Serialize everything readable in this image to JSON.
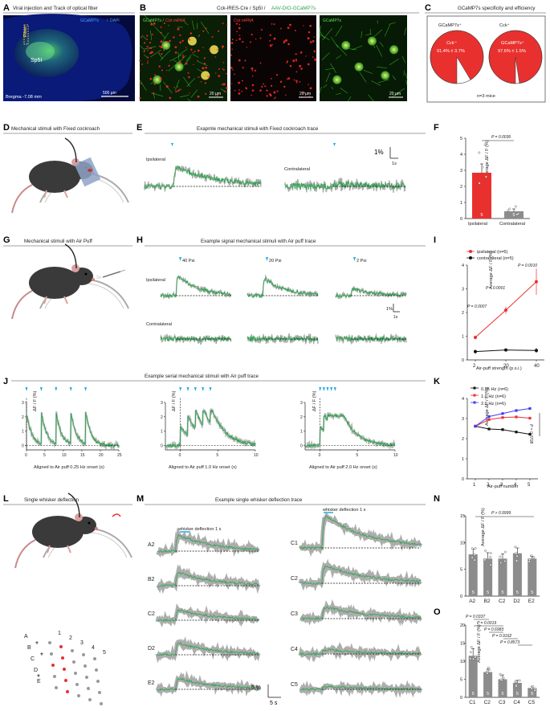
{
  "panel_letters": [
    "A",
    "B",
    "C",
    "D",
    "E",
    "F",
    "G",
    "H",
    "I",
    "J",
    "K",
    "L",
    "M",
    "N",
    "O"
  ],
  "colors": {
    "trace_green": "#2ea44f",
    "trace_gray": "#8a8a8a",
    "arrow_blue": "#29a8e0",
    "red": "#e8312f",
    "bar_red": "#e8312f",
    "bar_gray": "#8c8c8c",
    "blue_series": "#3d3df0"
  },
  "A": {
    "title": "Viral injection and Track of optical fiber",
    "stain": "GCaMP7s / DAPI",
    "label_gcamp": "GCaMP7s",
    "label_dapi": "DAPI",
    "fiber": "Fiber",
    "region": "Sp5I",
    "bregma": "Bregma -7.08 mm",
    "scale": "500 µm"
  },
  "B": {
    "title_a": "Cck-IRES-Cre / Sp5I / ",
    "title_b": "AAV-DIO-GCaMP7s",
    "img1_green": "GCaMP7s / ",
    "img1_red": "Cck mRNA",
    "img2": "Cck mRNA",
    "img3": "GCaMP7s",
    "scale": "20 µm"
  },
  "C": {
    "title": "GCaMP7s specificity and efficiency",
    "pie1_label": "GCaMP7s⁺",
    "pie1_inner": "Cck⁺",
    "pie1_value": "91.4% ± 3.7%",
    "pie2_label": "Cck⁺",
    "pie2_inner": "GCaMP7s⁺",
    "pie2_value": "97.6% ± 1.5%",
    "n": "n=3 mice",
    "pie1_frac": 0.914,
    "pie2_frac": 0.976
  },
  "D": {
    "title": "Mechanical stimuli with Fixed cockroach"
  },
  "E": {
    "title": "Exapmle mechanical stimuli with Fixed cockroach trace",
    "ipsi": "Ipsilateral",
    "contra": "Contralateral",
    "scale_y": "1%",
    "scale_x": "1s"
  },
  "F": {
    "ylabel": "Average ΔF / F (%)",
    "p": "P = 0.0036",
    "n_label": "5",
    "chart_data": {
      "type": "bar",
      "categories": [
        "Ipsilateral",
        "Contralateral"
      ],
      "values": [
        2.85,
        0.45
      ],
      "errors": [
        0.55,
        0.15
      ],
      "ylim": [
        0,
        5
      ],
      "yticks": [
        "0",
        "1",
        "2",
        "3",
        "4",
        "5"
      ],
      "points": [
        [
          2.2,
          2.6,
          3.2,
          4.6,
          4.1
        ],
        [
          0.3,
          0.5,
          0.6,
          0.75,
          0.25
        ]
      ]
    }
  },
  "G": {
    "title": "Mechanical stimuli with Air Puff"
  },
  "H": {
    "title": "Example signal mechanical stimuli with Air puff trace",
    "psi40": "40 Psi",
    "psi20": "20 Psi",
    "psi2": "2 Psi",
    "ipsi": "Ipsilateral",
    "contra": "Contralateral",
    "scale_y": "1%",
    "scale_x": "1s"
  },
  "I": {
    "ylabel": "Average ΔF / F (%)",
    "xlabel": "Air-puff strength (p.s.i.)",
    "legend_ipsi": "ipsilateral (n=6)",
    "legend_contra": "contralateral (n=5)",
    "p1": "P = 0.0007",
    "p2": "P < 0.0001",
    "p3": "P = 0.0010",
    "chart_data": {
      "type": "line",
      "categories": [
        "2",
        "20",
        "40"
      ],
      "series": [
        {
          "name": "ipsilateral (n=6)",
          "values": [
            0.95,
            2.1,
            3.3
          ],
          "errors": [
            0.08,
            0.15,
            0.55
          ]
        },
        {
          "name": "contralateral (n=5)",
          "values": [
            0.35,
            0.42,
            0.4
          ],
          "errors": [
            0.08,
            0.06,
            0.1
          ]
        }
      ],
      "ylim": [
        0,
        4
      ],
      "yticks": [
        "0",
        "1",
        "2",
        "3",
        "4"
      ]
    }
  },
  "J": {
    "title": "Example serial mechanical stimuli with Air puff trace",
    "ylabel": "ΔF / F (%)",
    "x1": "Aligned to Air puff 0.25 Hz onset (s)",
    "x2": "Aligned to Air puff 1.0 Hz onset (s)",
    "x3": "Aligned to Air puff 2.0 Hz onset (s)",
    "xt1": [
      "0",
      "5",
      "10",
      "15",
      "20",
      "25"
    ],
    "xt2": [
      "0",
      "5",
      "10"
    ],
    "xt3": [
      "0",
      "5",
      "10"
    ],
    "yt": [
      "0",
      "1",
      "2",
      "3"
    ]
  },
  "K": {
    "ylabel": "Average ΔF / F (%)",
    "xlabel": "Air-puff number",
    "p": "P = 0.0708",
    "chart_data": {
      "type": "line",
      "categories": [
        "1",
        "2",
        "3",
        "4",
        "5"
      ],
      "series": [
        {
          "name": "0.25 Hz (n=6)",
          "values": [
            2.62,
            2.48,
            2.45,
            2.33,
            2.22
          ]
        },
        {
          "name": "1.0 Hz (n=6)",
          "values": [
            2.62,
            2.95,
            3.05,
            3.08,
            3.02
          ]
        },
        {
          "name": "2.0 Hz (n=6)",
          "values": [
            2.62,
            3.1,
            3.25,
            3.4,
            3.5
          ]
        }
      ],
      "ylim": [
        0,
        4
      ],
      "yticks": [
        "0",
        "1",
        "2",
        "3",
        "4"
      ]
    }
  },
  "L": {
    "title": "Single whisker deflection",
    "rows": [
      "A",
      "B",
      "C",
      "D",
      "E"
    ],
    "cols": [
      "1",
      "2",
      "3",
      "4",
      "5"
    ]
  },
  "M": {
    "title": "Example single whisker deflection trace",
    "stim1": "whisker deflection 1 s",
    "stim2": "whisker deflection 1 s",
    "left": [
      "A2",
      "B2",
      "C2",
      "D2",
      "E2"
    ],
    "right": [
      "C1",
      "C2",
      "C3",
      "C4",
      "C5"
    ],
    "scale_y": "5 %",
    "scale_x": "5 s"
  },
  "N": {
    "ylabel": "Average ΔF / F (%)",
    "p": "P > 0.9999",
    "n_label": "5",
    "chart_data": {
      "type": "bar",
      "categories": [
        "A2",
        "B2",
        "C2",
        "D2",
        "E2"
      ],
      "values": [
        7.8,
        7.0,
        7.0,
        8.0,
        7.0
      ],
      "errors": [
        1.0,
        1.1,
        0.9,
        1.0,
        0.4
      ],
      "ylim": [
        0,
        15
      ],
      "yticks": [
        "0",
        "5",
        "10",
        "15"
      ]
    }
  },
  "O": {
    "ylabel": "Average ΔF / F (%)",
    "p": [
      "P = 0.0337",
      "P = 0.0019",
      "P = 0.6983",
      "P = 0.9162",
      "P = 0.8573"
    ],
    "n_label": "5",
    "chart_data": {
      "type": "bar",
      "categories": [
        "C1",
        "C2",
        "C3",
        "C4",
        "C5"
      ],
      "values": [
        11.5,
        7.0,
        5.0,
        4.0,
        2.6
      ],
      "errors": [
        2.0,
        0.8,
        1.2,
        0.7,
        0.5
      ],
      "ylim": [
        0,
        20
      ],
      "yticks": [
        "0",
        "5",
        "10",
        "15",
        "20"
      ]
    }
  }
}
